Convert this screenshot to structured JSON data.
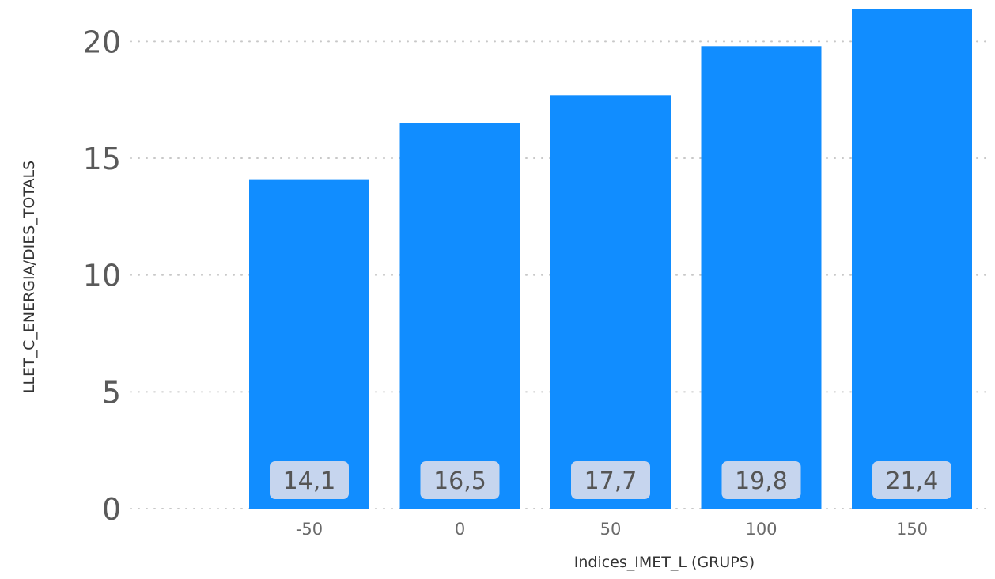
{
  "chart_data": {
    "type": "bar",
    "categories": [
      "-50",
      "0",
      "50",
      "100",
      "150"
    ],
    "values": [
      14.1,
      16.5,
      17.7,
      19.8,
      21.4
    ],
    "data_labels": [
      "14,1",
      "16,5",
      "17,7",
      "19,8",
      "21,4"
    ],
    "xlabel": "Indices_IMET_L (GRUPS)",
    "ylabel": "LLET_C_ENERGIA/DIES_TOTALS",
    "ylim": [
      0,
      21.7
    ],
    "yticks": [
      0,
      5,
      10,
      15,
      20
    ],
    "grid": true,
    "colors": {
      "bar": "#118DFF",
      "label_bg": "#C6D5EE",
      "gridline": "#C8C8C8"
    }
  }
}
